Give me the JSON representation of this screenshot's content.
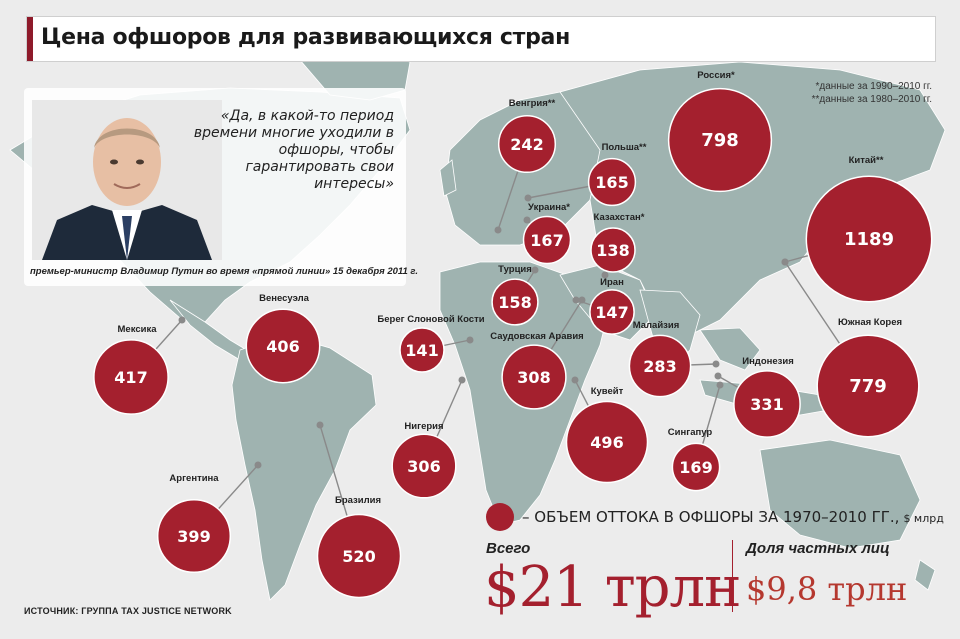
{
  "header": {
    "title": "Цена офшоров для развивающихся стран"
  },
  "notes": {
    "note1": "*данные за 1990–2010 гг.",
    "note2": "**данные за 1980–2010 гг."
  },
  "quote": {
    "text": "«Да, в какой-то период времени многие уходили в офшоры, чтобы гарантировать свои интересы»",
    "caption": "премьер-министр Владимир Путин во время «прямой линии» 15 декабря 2011 г."
  },
  "legend": {
    "text": "– ОБЪЕМ ОТТОКА В ОФШОРЫ ЗА 1970–2010 ГГ.,",
    "unit": "$ млрд"
  },
  "totals": {
    "total_label": "Всего",
    "total_value": "$21 трлн",
    "private_label": "Доля частных лиц",
    "private_value": "$9,8 трлн"
  },
  "source": "ИСТОЧНИК: ГРУППА TAX JUSTICE NETWORK",
  "colors": {
    "bubble": "#a4202e",
    "land": "#9fb3b0",
    "background": "#ececec"
  },
  "chart_data": {
    "type": "bubble-map",
    "unit": "$ млрд",
    "categories": [
      "Россия*",
      "Венгрия**",
      "Польша**",
      "Украина*",
      "Казахстан*",
      "Турция",
      "Иран",
      "Берег Слоновой Кости",
      "Саудовская Аравия",
      "Малайзия",
      "Кувейт",
      "Индонезия",
      "Сингапур",
      "Нигерия",
      "Китай**",
      "Южная Корея",
      "Мексика",
      "Венесуэла",
      "Аргентина",
      "Бразилия"
    ],
    "values": [
      798,
      242,
      165,
      167,
      138,
      158,
      147,
      141,
      308,
      283,
      496,
      331,
      169,
      306,
      1189,
      779,
      417,
      406,
      399,
      520
    ]
  }
}
